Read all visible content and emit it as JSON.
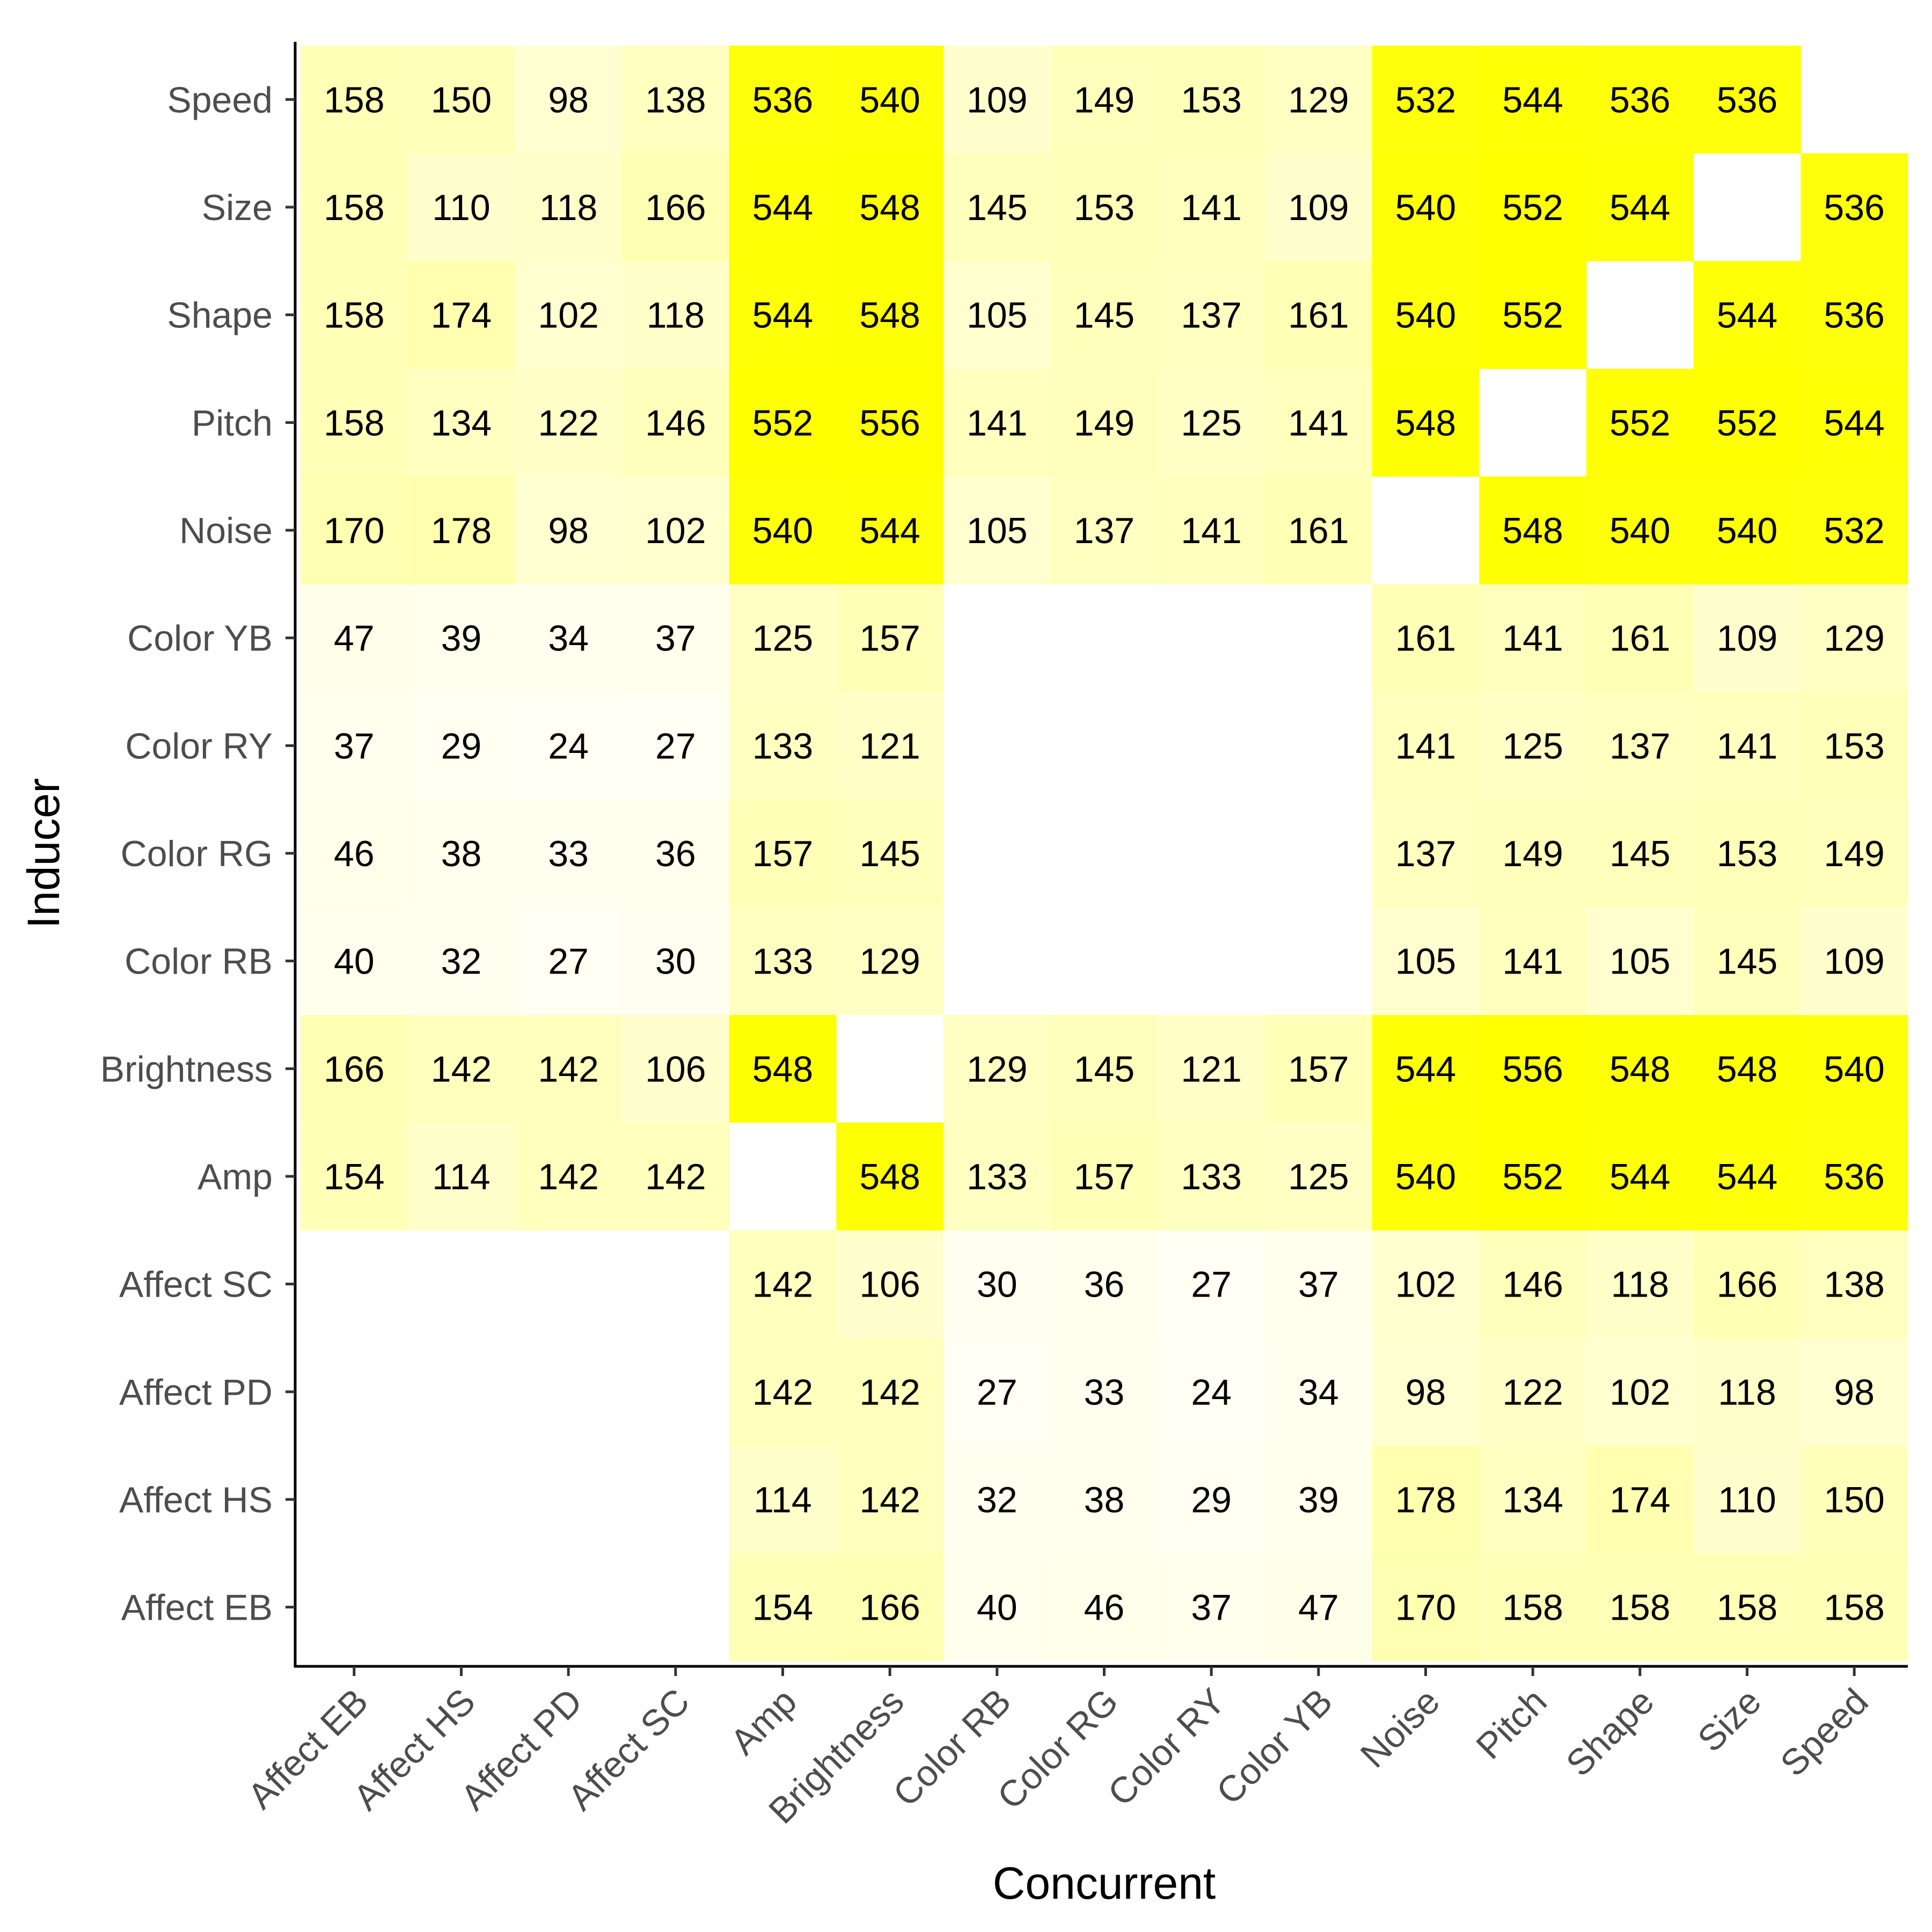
{
  "chart_data": {
    "type": "heatmap",
    "xlabel": "Concurrent",
    "ylabel": "Inducer",
    "x_categories": [
      "Affect EB",
      "Affect HS",
      "Affect PD",
      "Affect SC",
      "Amp",
      "Brightness",
      "Color RB",
      "Color RG",
      "Color RY",
      "Color YB",
      "Noise",
      "Pitch",
      "Shape",
      "Size",
      "Speed"
    ],
    "y_categories": [
      "Affect EB",
      "Affect HS",
      "Affect PD",
      "Affect SC",
      "Amp",
      "Brightness",
      "Color RB",
      "Color RG",
      "Color RY",
      "Color YB",
      "Noise",
      "Pitch",
      "Shape",
      "Size",
      "Speed"
    ],
    "values": [
      [
        null,
        null,
        null,
        null,
        154,
        166,
        40,
        46,
        37,
        47,
        170,
        158,
        158,
        158,
        158
      ],
      [
        null,
        null,
        null,
        null,
        114,
        142,
        32,
        38,
        29,
        39,
        178,
        134,
        174,
        110,
        150
      ],
      [
        null,
        null,
        null,
        null,
        142,
        142,
        27,
        33,
        24,
        34,
        98,
        122,
        102,
        118,
        98
      ],
      [
        null,
        null,
        null,
        null,
        142,
        106,
        30,
        36,
        27,
        37,
        102,
        146,
        118,
        166,
        138
      ],
      [
        154,
        114,
        142,
        142,
        null,
        548,
        133,
        157,
        133,
        125,
        540,
        552,
        544,
        544,
        536
      ],
      [
        166,
        142,
        142,
        106,
        548,
        null,
        129,
        145,
        121,
        157,
        544,
        556,
        548,
        548,
        540
      ],
      [
        40,
        32,
        27,
        30,
        133,
        129,
        null,
        null,
        null,
        null,
        105,
        141,
        105,
        145,
        109
      ],
      [
        46,
        38,
        33,
        36,
        157,
        145,
        null,
        null,
        null,
        null,
        137,
        149,
        145,
        153,
        149
      ],
      [
        37,
        29,
        24,
        27,
        133,
        121,
        null,
        null,
        null,
        null,
        141,
        125,
        137,
        141,
        153
      ],
      [
        47,
        39,
        34,
        37,
        125,
        157,
        null,
        null,
        null,
        null,
        161,
        141,
        161,
        109,
        129
      ],
      [
        170,
        178,
        98,
        102,
        540,
        544,
        105,
        137,
        141,
        161,
        null,
        548,
        540,
        540,
        532
      ],
      [
        158,
        134,
        122,
        146,
        552,
        556,
        141,
        149,
        125,
        141,
        548,
        null,
        552,
        552,
        544
      ],
      [
        158,
        174,
        102,
        118,
        544,
        548,
        105,
        145,
        137,
        161,
        540,
        552,
        null,
        544,
        536
      ],
      [
        158,
        110,
        118,
        166,
        544,
        548,
        145,
        153,
        141,
        109,
        540,
        552,
        544,
        null,
        536
      ],
      [
        158,
        150,
        98,
        138,
        536,
        540,
        109,
        149,
        153,
        129,
        532,
        544,
        536,
        536,
        null
      ]
    ],
    "color_low": "#ffffff",
    "color_high": "#ffff00",
    "value_range": [
      0,
      556
    ],
    "legend": "none",
    "grid": false
  }
}
